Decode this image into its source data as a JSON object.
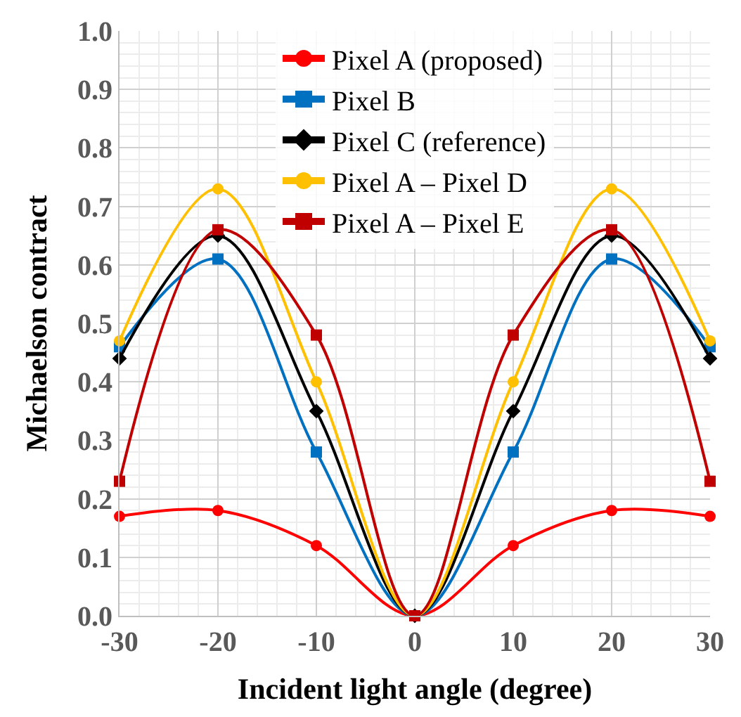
{
  "chart_data": {
    "type": "line",
    "xlabel": "Incident light angle (degree)",
    "ylabel": "Michaelson contract",
    "x": [
      -30,
      -20,
      -10,
      0,
      10,
      20,
      30
    ],
    "series": [
      {
        "name": "Pixel A (proposed)",
        "color": "#ff0000",
        "marker": "circle",
        "values": [
          0.17,
          0.18,
          0.12,
          0.0,
          0.12,
          0.18,
          0.17
        ]
      },
      {
        "name": "Pixel B",
        "color": "#0070c0",
        "marker": "square",
        "values": [
          0.46,
          0.61,
          0.28,
          0.0,
          0.28,
          0.61,
          0.46
        ]
      },
      {
        "name": "Pixel C (reference)",
        "color": "#000000",
        "marker": "diamond",
        "values": [
          0.44,
          0.65,
          0.35,
          0.0,
          0.35,
          0.65,
          0.44
        ]
      },
      {
        "name": "Pixel A – Pixel D",
        "color": "#ffc000",
        "marker": "circle",
        "values": [
          0.47,
          0.73,
          0.4,
          0.0,
          0.4,
          0.73,
          0.47
        ]
      },
      {
        "name": "Pixel A – Pixel E",
        "color": "#c00000",
        "marker": "square",
        "values": [
          0.23,
          0.66,
          0.48,
          0.0,
          0.48,
          0.66,
          0.23
        ]
      }
    ],
    "xlim": [
      -30,
      30
    ],
    "xticks": [
      -30,
      -20,
      -10,
      0,
      10,
      20,
      30
    ],
    "ylim": [
      0,
      1
    ],
    "yticks": [
      {
        "value": 0,
        "label": "0.0"
      },
      0.1,
      0.2,
      0.3,
      0.4,
      0.5,
      0.6,
      0.7,
      0.8,
      0.9,
      {
        "value": 1,
        "label": "1.0"
      }
    ],
    "grid": true,
    "legend": "top",
    "line_style": "solid"
  }
}
